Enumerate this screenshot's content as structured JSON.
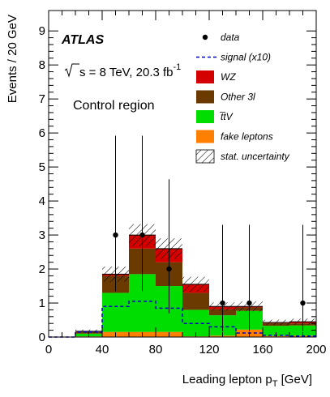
{
  "chart_data": {
    "type": "bar",
    "subtype": "stacked-histogram",
    "experiment_label": "ATLAS",
    "energy_lumi": {
      "prefix": "s = 8 TeV, 20.3 fb",
      "superscript": "-1"
    },
    "region_label": "Control region",
    "xlabel": {
      "main": "Leading lepton p",
      "sub": "T",
      "unit": " [GeV]"
    },
    "ylabel": "Events / 20 GeV",
    "xlim": [
      0,
      200
    ],
    "ylim": [
      0,
      9.6
    ],
    "xticks": [
      0,
      40,
      80,
      120,
      160,
      200
    ],
    "yticks": [
      0,
      1,
      2,
      3,
      4,
      5,
      6,
      7,
      8,
      9
    ],
    "bins": [
      [
        20,
        40
      ],
      [
        40,
        60
      ],
      [
        60,
        80
      ],
      [
        80,
        100
      ],
      [
        100,
        120
      ],
      [
        120,
        140
      ],
      [
        140,
        160
      ],
      [
        160,
        180
      ],
      [
        180,
        200
      ]
    ],
    "stack": [
      {
        "name": "fake leptons",
        "color": "#ff7f00",
        "values": [
          0.02,
          0.15,
          0.15,
          0.15,
          0.02,
          0.04,
          0.22,
          0.03,
          0.04
        ]
      },
      {
        "name": "t̅tV",
        "color": "#00dd00",
        "values": [
          0.08,
          1.15,
          1.7,
          1.35,
          0.78,
          0.6,
          0.55,
          0.3,
          0.3
        ]
      },
      {
        "name": "Other 3l",
        "color": "#6b3a00",
        "values": [
          0.05,
          0.5,
          0.75,
          0.7,
          0.5,
          0.18,
          0.1,
          0.08,
          0.06
        ]
      },
      {
        "name": "WZ",
        "color": "#d40000",
        "values": [
          0.02,
          0.05,
          0.4,
          0.4,
          0.25,
          0.08,
          0.03,
          0.02,
          0.05
        ]
      }
    ],
    "uncertainty": {
      "name": "stat. uncertainty",
      "half_width": [
        0.05,
        0.22,
        0.32,
        0.3,
        0.22,
        0.12,
        0.15,
        0.08,
        0.09
      ]
    },
    "signal": {
      "name": "signal (x10)",
      "color": "#0000cc",
      "bins": [
        [
          0,
          20
        ],
        [
          20,
          40
        ],
        [
          40,
          60
        ],
        [
          60,
          80
        ],
        [
          80,
          100
        ],
        [
          100,
          120
        ],
        [
          120,
          140
        ],
        [
          140,
          160
        ],
        [
          160,
          180
        ],
        [
          180,
          200
        ]
      ],
      "values": [
        0.0,
        0.15,
        0.9,
        1.05,
        0.85,
        0.4,
        0.3,
        0.12,
        0.05,
        0.03
      ]
    },
    "data": {
      "name": "data",
      "x": [
        50,
        70,
        90,
        130,
        150,
        190
      ],
      "y": [
        3,
        3,
        2,
        1,
        1,
        1
      ],
      "err_low": [
        1.65,
        1.65,
        1.3,
        0.83,
        0.83,
        0.83
      ],
      "err_high": [
        2.92,
        2.92,
        2.64,
        2.3,
        2.3,
        2.3
      ]
    },
    "legend_order": [
      "data",
      "signal (x10)",
      "WZ",
      "Other 3l",
      "t̅tV",
      "fake leptons",
      "stat. uncertainty"
    ],
    "legend_position": "top-right"
  }
}
